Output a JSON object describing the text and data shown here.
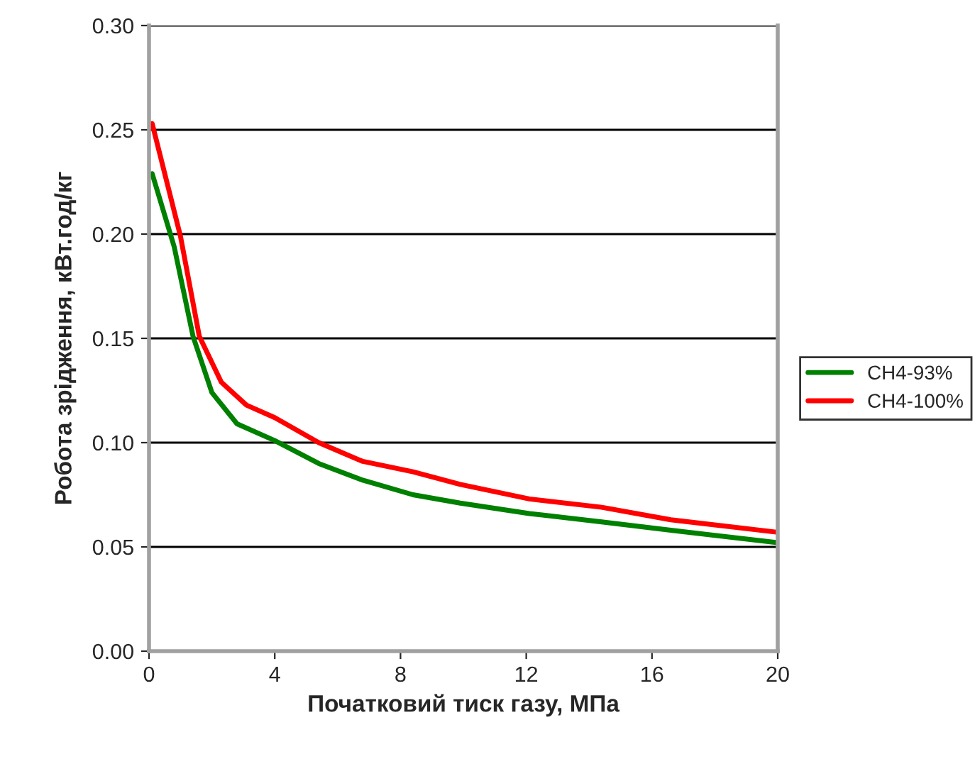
{
  "chart_data": {
    "type": "line",
    "xlabel": "Початковий тиск газу, МПа",
    "ylabel": "Робота зрідження, кВт.год/кг",
    "xlim": [
      0,
      20
    ],
    "xticks": [
      0,
      4,
      8,
      12,
      16,
      20
    ],
    "ylim": [
      0,
      0.3
    ],
    "yticks": [
      {
        "value": 0,
        "label": "0.00"
      },
      {
        "value": 0.05,
        "label": "0.05"
      },
      {
        "value": 0.1,
        "label": "0.10"
      },
      {
        "value": 0.15,
        "label": "0.15"
      },
      {
        "value": 0.2,
        "label": "0.20"
      },
      {
        "value": 0.25,
        "label": "0.25"
      },
      {
        "value": 0.3,
        "label": "0.30"
      }
    ],
    "grid": "y",
    "legend": "right",
    "marker": "none",
    "line_style": "solid",
    "series": [
      {
        "name": "CH4-93%",
        "color": "#008000",
        "x": [
          0.1,
          0.8,
          1.4,
          2,
          2.8,
          4,
          5.4,
          6.8,
          8.4,
          9.9,
          12.1,
          14.4,
          16.6,
          20
        ],
        "values": [
          0.229,
          0.194,
          0.151,
          0.124,
          0.109,
          0.101,
          0.09,
          0.082,
          0.075,
          0.071,
          0.066,
          0.062,
          0.058,
          0.052
        ]
      },
      {
        "name": "CH4-100%",
        "color": "#ff0000",
        "x": [
          0.1,
          1,
          1.6,
          2.3,
          3.1,
          4,
          5.4,
          6.8,
          8.4,
          9.9,
          12.1,
          14.4,
          16.6,
          20
        ],
        "values": [
          0.253,
          0.199,
          0.151,
          0.129,
          0.118,
          0.112,
          0.1,
          0.091,
          0.086,
          0.08,
          0.073,
          0.069,
          0.063,
          0.057
        ]
      }
    ]
  }
}
